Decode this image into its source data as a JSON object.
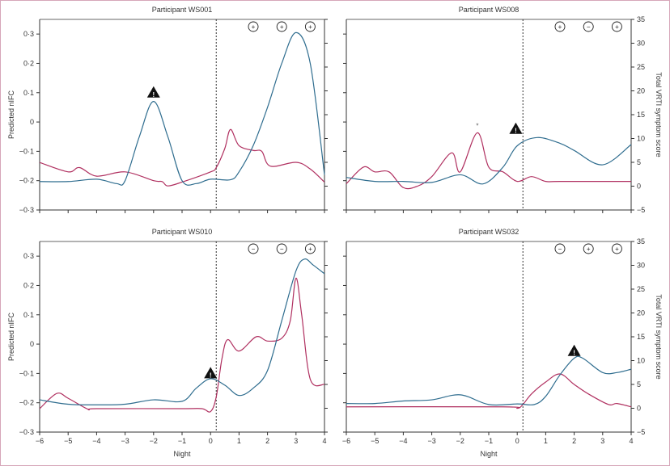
{
  "chart_data": {
    "type": "line",
    "colors": {
      "nifc": "#2f6d8f",
      "symptom": "#b03060",
      "border": "#d6a6b9"
    },
    "xlabel": "Night",
    "ylabel_left": "Predicted nIFC",
    "ylabel_right": "Total VRTI symptom score",
    "xlim": [
      -6,
      4
    ],
    "ylim_left": [
      -0.3,
      0.35
    ],
    "ylim_right": [
      -5,
      35
    ],
    "x_ticks": [
      "−6",
      "−5",
      "−4",
      "−3",
      "−2",
      "−1",
      "0",
      "1",
      "2",
      "3",
      "4"
    ],
    "y_ticks_left": [
      "−0·3",
      "−0·2",
      "−0·1",
      "0",
      "0·1",
      "0·2",
      "0·3"
    ],
    "y_ticks_right": [
      "−5",
      "0",
      "5",
      "10",
      "15",
      "20",
      "25",
      "30",
      "35"
    ],
    "dashed_line_x": 0.2,
    "panels": [
      {
        "title": "Participant WS001",
        "nifc": [
          [
            -6,
            -0.203
          ],
          [
            -5,
            -0.203
          ],
          [
            -4,
            -0.195
          ],
          [
            -3.3,
            -0.21
          ],
          [
            -3,
            -0.2
          ],
          [
            -2.5,
            -0.05
          ],
          [
            -2,
            0.07
          ],
          [
            -1.5,
            -0.05
          ],
          [
            -1,
            -0.2
          ],
          [
            -0.5,
            -0.21
          ],
          [
            0,
            -0.195
          ],
          [
            0.7,
            -0.197
          ],
          [
            1,
            -0.17
          ],
          [
            1.5,
            -0.08
          ],
          [
            2,
            0.05
          ],
          [
            2.5,
            0.2
          ],
          [
            3,
            0.305
          ],
          [
            3.5,
            0.2
          ],
          [
            4,
            -0.18
          ]
        ],
        "symptom": [
          [
            -6,
            4.97
          ],
          [
            -5,
            3.0
          ],
          [
            -4.6,
            3.9
          ],
          [
            -4,
            2.1
          ],
          [
            -3,
            3.0
          ],
          [
            -2,
            1.15
          ],
          [
            -1.7,
            0.97
          ],
          [
            -1.5,
            0.05
          ],
          [
            -1,
            0.85
          ],
          [
            0,
            3.0
          ],
          [
            0.2,
            3.9
          ],
          [
            0.5,
            7.9
          ],
          [
            0.7,
            11.9
          ],
          [
            1,
            8.5
          ],
          [
            1.5,
            7.5
          ],
          [
            1.8,
            7.3
          ],
          [
            2.1,
            4.2
          ],
          [
            3,
            5.0
          ],
          [
            3.5,
            3.6
          ],
          [
            4,
            0.85
          ]
        ],
        "result_symbols": [
          {
            "x": 1.5,
            "sign": "+"
          },
          {
            "x": 2.5,
            "sign": "+"
          },
          {
            "x": 3.5,
            "sign": "+"
          }
        ],
        "warning": {
          "x": -2,
          "axis": "left",
          "y": 0.1,
          "label": "!"
        },
        "asterisk": null
      },
      {
        "title": "Participant WS008",
        "nifc": [
          [
            -6,
            -0.189
          ],
          [
            -5,
            -0.2025
          ],
          [
            -4,
            -0.2025
          ],
          [
            -3,
            -0.206
          ],
          [
            -2,
            -0.18
          ],
          [
            -1.2,
            -0.211
          ],
          [
            -0.5,
            -0.154
          ],
          [
            0,
            -0.081
          ],
          [
            0.7,
            -0.053
          ],
          [
            1.5,
            -0.0725
          ],
          [
            2,
            -0.097
          ],
          [
            3,
            -0.146
          ],
          [
            4,
            -0.077
          ]
        ],
        "symptom": [
          [
            -6,
            0.5
          ],
          [
            -5.4,
            4
          ],
          [
            -5,
            3
          ],
          [
            -4.5,
            3
          ],
          [
            -4,
            -0.3
          ],
          [
            -3.5,
            0
          ],
          [
            -3,
            2
          ],
          [
            -2.3,
            7
          ],
          [
            -2,
            3
          ],
          [
            -1.4,
            11.2
          ],
          [
            -1,
            4
          ],
          [
            -0.5,
            3
          ],
          [
            0,
            1
          ],
          [
            0.5,
            2
          ],
          [
            1,
            1
          ],
          [
            1.5,
            1
          ],
          [
            4,
            1
          ]
        ],
        "result_symbols": [
          {
            "x": 1.5,
            "sign": "+"
          },
          {
            "x": 2.5,
            "sign": "−"
          },
          {
            "x": 3.5,
            "sign": "+"
          }
        ],
        "warning": {
          "x": -0.05,
          "axis": "right",
          "y": 12,
          "label": "!"
        },
        "asterisk": {
          "x": -1.4,
          "y": 12.2,
          "label": "*"
        }
      },
      {
        "title": "Participant WS010",
        "nifc": [
          [
            -6,
            -0.19
          ],
          [
            -5,
            -0.205
          ],
          [
            -4,
            -0.207
          ],
          [
            -3,
            -0.205
          ],
          [
            -2,
            -0.19
          ],
          [
            -1,
            -0.195
          ],
          [
            -0.5,
            -0.15
          ],
          [
            0,
            -0.118
          ],
          [
            0.5,
            -0.14
          ],
          [
            1,
            -0.175
          ],
          [
            1.5,
            -0.15
          ],
          [
            2,
            -0.09
          ],
          [
            2.5,
            0.08
          ],
          [
            3,
            0.25
          ],
          [
            3.3,
            0.29
          ],
          [
            3.6,
            0.27
          ],
          [
            4,
            0.24
          ]
        ],
        "symptom": [
          [
            -6,
            -0.08
          ],
          [
            -5.4,
            3.1
          ],
          [
            -5,
            2.1
          ],
          [
            -4.3,
            -0.2
          ],
          [
            -4,
            -0.08
          ],
          [
            -1,
            -0.08
          ],
          [
            -0.3,
            -0.08
          ],
          [
            0,
            -0.69
          ],
          [
            0.2,
            2.4
          ],
          [
            0.4,
            10.4
          ],
          [
            0.6,
            14.4
          ],
          [
            1,
            12.0
          ],
          [
            1.6,
            15.0
          ],
          [
            2,
            14.1
          ],
          [
            2.5,
            14.7
          ],
          [
            2.8,
            18.4
          ],
          [
            3,
            27.3
          ],
          [
            3.2,
            19.6
          ],
          [
            3.5,
            6.1
          ],
          [
            4,
            5.0
          ]
        ],
        "result_symbols": [
          {
            "x": 1.5,
            "sign": "−"
          },
          {
            "x": 2.5,
            "sign": "−"
          },
          {
            "x": 3.5,
            "sign": "+"
          }
        ],
        "warning": {
          "x": 0,
          "axis": "left",
          "y": -0.1,
          "label": "!"
        },
        "asterisk": null
      },
      {
        "title": "Participant WS032",
        "nifc": [
          [
            -6,
            -0.2025
          ],
          [
            -5,
            -0.2025
          ],
          [
            -4,
            -0.194
          ],
          [
            -3,
            -0.19
          ],
          [
            -2,
            -0.173
          ],
          [
            -1,
            -0.206
          ],
          [
            0,
            -0.204
          ],
          [
            0.6,
            -0.206
          ],
          [
            1,
            -0.178
          ],
          [
            1.5,
            -0.105
          ],
          [
            2,
            -0.048
          ],
          [
            2.3,
            -0.048
          ],
          [
            3,
            -0.097
          ],
          [
            3.5,
            -0.097
          ],
          [
            4,
            -0.0855
          ]
        ],
        "symptom": [
          [
            -6,
            0.3
          ],
          [
            -0.5,
            0.3
          ],
          [
            0,
            0
          ],
          [
            0.2,
            0.8
          ],
          [
            0.5,
            3
          ],
          [
            1,
            5.5
          ],
          [
            1.5,
            7.2
          ],
          [
            2,
            5
          ],
          [
            2.5,
            3
          ],
          [
            3.2,
            0.8
          ],
          [
            3.5,
            1
          ],
          [
            4,
            0.3
          ]
        ],
        "result_symbols": [
          {
            "x": 1.5,
            "sign": "−"
          },
          {
            "x": 2.5,
            "sign": "+"
          },
          {
            "x": 3.5,
            "sign": "+"
          }
        ],
        "warning": {
          "x": 2,
          "axis": "right",
          "y": 12,
          "label": "!"
        },
        "asterisk": null
      }
    ]
  }
}
